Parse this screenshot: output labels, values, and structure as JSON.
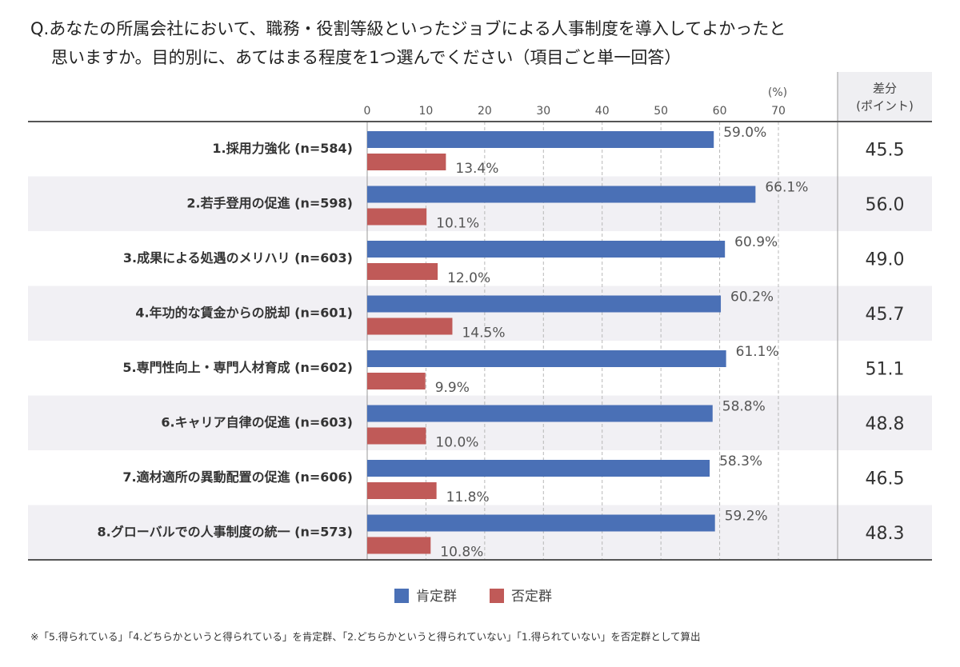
{
  "chart_data": {
    "type": "bar",
    "orientation": "horizontal",
    "title_lines": [
      "Q.あなたの所属会社において、職務・役割等級といったジョブによる人事制度を導入してよかったと",
      "思いますか。目的別に、あてはまる程度を1つ選んでください（項目ごと単一回答）"
    ],
    "x_unit_label": "(%)",
    "categories": [
      "1.採用力強化 (n=584)",
      "2.若手登用の促進 (n=598)",
      "3.成果による処遇のメリハリ (n=603)",
      "4.年功的な賃金からの脱却 (n=601)",
      "5.専門性向上・専門人材育成 (n=602)",
      "6.キャリア自律の促進 (n=603)",
      "7.適材適所の異動配置の促進 (n=606)",
      "8.グローバルでの人事制度の統一 (n=573)"
    ],
    "series": [
      {
        "name": "肯定群",
        "color": "#4a70b6",
        "values": [
          59.0,
          66.1,
          60.9,
          60.2,
          61.1,
          58.8,
          58.3,
          59.2
        ],
        "value_labels": [
          "59.0%",
          "66.1%",
          "60.9%",
          "60.2%",
          "61.1%",
          "58.8%",
          "58.3%",
          "59.2%"
        ]
      },
      {
        "name": "否定群",
        "color": "#c05a58",
        "values": [
          13.4,
          10.1,
          12.0,
          14.5,
          9.9,
          10.0,
          11.8,
          10.8
        ],
        "value_labels": [
          "13.4%",
          "10.1%",
          "12.0%",
          "14.5%",
          "9.9%",
          "10.0%",
          "11.8%",
          "10.8%"
        ]
      }
    ],
    "xlim": [
      0,
      70
    ],
    "xticks": [
      0,
      10,
      20,
      30,
      40,
      50,
      60,
      70
    ],
    "grid": true,
    "diff_header": [
      "差分",
      "(ポイント)"
    ],
    "diff_labels": [
      "45.5",
      "56.0",
      "49.0",
      "45.7",
      "51.1",
      "48.8",
      "46.5",
      "48.3"
    ],
    "footnote": "※「5.得られている」「4.どちらかというと得られている」を肯定群、「2.どちらかというと得られていない」「1.得られていない」を否定群として算出"
  }
}
